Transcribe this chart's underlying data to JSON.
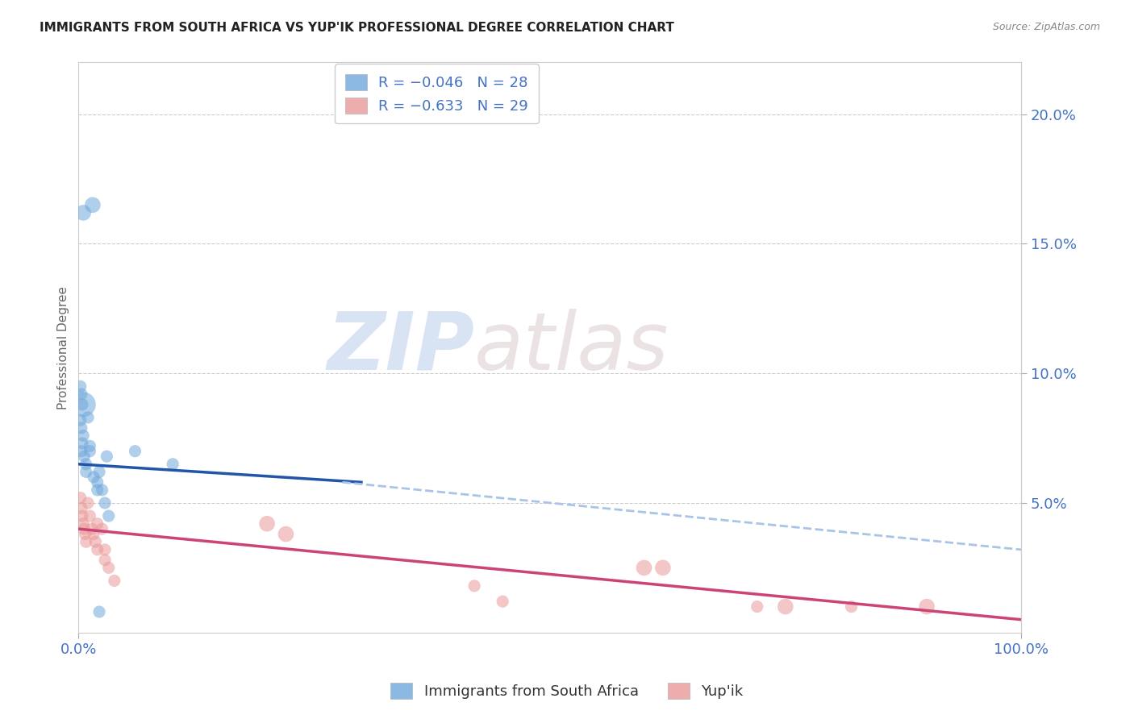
{
  "title": "IMMIGRANTS FROM SOUTH AFRICA VS YUP'IK PROFESSIONAL DEGREE CORRELATION CHART",
  "source": "Source: ZipAtlas.com",
  "ylabel": "Professional Degree",
  "right_yticks": [
    "20.0%",
    "15.0%",
    "10.0%",
    "5.0%"
  ],
  "right_ytick_vals": [
    0.2,
    0.15,
    0.1,
    0.05
  ],
  "legend_blue_label": "Immigrants from South Africa",
  "legend_pink_label": "Yup'ik",
  "legend_blue_R": "R = −0.046",
  "legend_blue_N": "N = 28",
  "legend_pink_R": "R = −0.633",
  "legend_pink_N": "N = 29",
  "blue_color": "#6fa8dc",
  "pink_color": "#ea9999",
  "blue_line_color": "#2255aa",
  "pink_line_color": "#cc4477",
  "dashed_line_color": "#aac4e8",
  "watermark_zip": "ZIP",
  "watermark_atlas": "atlas",
  "blue_scatter_x": [
    0.005,
    0.015,
    0.002,
    0.003,
    0.004,
    0.002,
    0.003,
    0.005,
    0.004,
    0.003,
    0.006,
    0.008,
    0.008,
    0.01,
    0.012,
    0.016,
    0.02,
    0.005,
    0.022,
    0.025,
    0.03,
    0.032,
    0.012,
    0.06,
    0.1,
    0.02,
    0.028,
    0.022
  ],
  "blue_scatter_y": [
    0.162,
    0.165,
    0.095,
    0.092,
    0.088,
    0.082,
    0.079,
    0.076,
    0.073,
    0.07,
    0.068,
    0.065,
    0.062,
    0.083,
    0.07,
    0.06,
    0.058,
    0.088,
    0.062,
    0.055,
    0.068,
    0.045,
    0.072,
    0.07,
    0.065,
    0.055,
    0.05,
    0.008
  ],
  "blue_scatter_sizes": [
    200,
    200,
    120,
    120,
    120,
    120,
    120,
    120,
    120,
    120,
    120,
    120,
    120,
    120,
    120,
    120,
    120,
    500,
    120,
    120,
    120,
    120,
    120,
    120,
    120,
    120,
    120,
    120
  ],
  "pink_scatter_x": [
    0.002,
    0.003,
    0.004,
    0.005,
    0.006,
    0.007,
    0.008,
    0.01,
    0.012,
    0.014,
    0.016,
    0.018,
    0.02,
    0.02,
    0.025,
    0.028,
    0.028,
    0.032,
    0.038,
    0.2,
    0.22,
    0.42,
    0.45,
    0.6,
    0.62,
    0.72,
    0.75,
    0.82,
    0.9
  ],
  "pink_scatter_y": [
    0.052,
    0.048,
    0.045,
    0.042,
    0.04,
    0.038,
    0.035,
    0.05,
    0.045,
    0.04,
    0.038,
    0.035,
    0.032,
    0.042,
    0.04,
    0.028,
    0.032,
    0.025,
    0.02,
    0.042,
    0.038,
    0.018,
    0.012,
    0.025,
    0.025,
    0.01,
    0.01,
    0.01,
    0.01
  ],
  "pink_scatter_sizes": [
    120,
    120,
    120,
    120,
    120,
    120,
    120,
    120,
    120,
    120,
    120,
    120,
    120,
    120,
    120,
    120,
    120,
    120,
    120,
    200,
    200,
    120,
    120,
    200,
    200,
    120,
    200,
    120,
    200
  ],
  "blue_line_x0": 0.0,
  "blue_line_x1": 0.3,
  "blue_line_y0": 0.065,
  "blue_line_y1": 0.058,
  "dash_line_x0": 0.28,
  "dash_line_x1": 1.0,
  "dash_line_y0": 0.058,
  "dash_line_y1": 0.032,
  "pink_line_x0": 0.0,
  "pink_line_x1": 1.0,
  "pink_line_y0": 0.04,
  "pink_line_y1": 0.005,
  "xmin": 0.0,
  "xmax": 1.0,
  "ymin": 0.0,
  "ymax": 0.22
}
